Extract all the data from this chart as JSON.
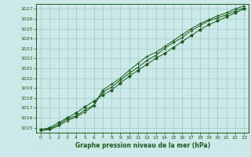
{
  "title": "Graphe pression niveau de la mer (hPa)",
  "bg_color": "#cce8e8",
  "line_color": "#1a5c1a",
  "grid_color": "#99cccc",
  "ylim": [
    1014.5,
    1027.5
  ],
  "xlim": [
    -0.5,
    23.5
  ],
  "yticks": [
    1015,
    1016,
    1017,
    1018,
    1019,
    1020,
    1021,
    1022,
    1023,
    1024,
    1025,
    1026,
    1027
  ],
  "xticks": [
    0,
    1,
    2,
    3,
    4,
    5,
    6,
    7,
    8,
    9,
    10,
    11,
    12,
    13,
    14,
    15,
    16,
    17,
    18,
    19,
    20,
    21,
    22,
    23
  ],
  "series": [
    [
      1014.8,
      1014.9,
      1015.3,
      1015.9,
      1016.2,
      1016.8,
      1017.3,
      1018.6,
      1019.1,
      1019.8,
      1020.5,
      1021.1,
      1021.8,
      1022.3,
      1023.0,
      1023.6,
      1024.1,
      1024.8,
      1025.3,
      1025.8,
      1026.1,
      1026.4,
      1026.8,
      1027.1
    ],
    [
      1014.8,
      1015.0,
      1015.5,
      1016.0,
      1016.5,
      1017.1,
      1017.7,
      1018.3,
      1018.8,
      1019.5,
      1020.2,
      1020.8,
      1021.4,
      1022.0,
      1022.5,
      1023.1,
      1023.7,
      1024.3,
      1024.9,
      1025.4,
      1025.8,
      1026.2,
      1026.6,
      1027.0
    ],
    [
      1014.7,
      1014.8,
      1015.2,
      1015.7,
      1016.1,
      1016.6,
      1017.2,
      1018.8,
      1019.4,
      1020.0,
      1020.8,
      1021.5,
      1022.2,
      1022.6,
      1023.2,
      1023.8,
      1024.4,
      1025.0,
      1025.5,
      1025.9,
      1026.3,
      1026.6,
      1027.0,
      1027.3
    ]
  ],
  "tick_fontsize": 4.5,
  "title_fontsize": 5.5
}
